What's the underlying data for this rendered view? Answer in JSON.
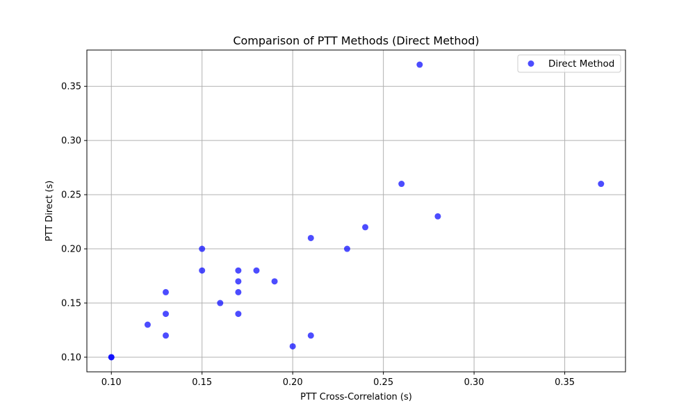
{
  "chart_data": {
    "type": "scatter",
    "title": "Comparison of PTT Methods (Direct Method)",
    "xlabel": "PTT Cross-Correlation (s)",
    "ylabel": "PTT Direct (s)",
    "xlim": [
      0.0865,
      0.3835
    ],
    "ylim": [
      0.0865,
      0.3835
    ],
    "xticks": [
      "0.10",
      "0.15",
      "0.20",
      "0.25",
      "0.30",
      "0.35"
    ],
    "yticks": [
      "0.10",
      "0.15",
      "0.20",
      "0.25",
      "0.30",
      "0.35"
    ],
    "grid": true,
    "legend_position": "top-right",
    "series": [
      {
        "name": "Direct Method",
        "color": "#0000ff",
        "opacity": 0.7,
        "x": [
          0.1,
          0.1,
          0.12,
          0.13,
          0.13,
          0.13,
          0.15,
          0.15,
          0.16,
          0.17,
          0.17,
          0.17,
          0.17,
          0.18,
          0.19,
          0.2,
          0.21,
          0.21,
          0.23,
          0.24,
          0.26,
          0.27,
          0.28,
          0.37
        ],
        "y": [
          0.1,
          0.1,
          0.13,
          0.12,
          0.14,
          0.16,
          0.18,
          0.2,
          0.15,
          0.14,
          0.16,
          0.17,
          0.18,
          0.18,
          0.17,
          0.11,
          0.12,
          0.21,
          0.2,
          0.22,
          0.26,
          0.37,
          0.23,
          0.26
        ]
      }
    ]
  }
}
